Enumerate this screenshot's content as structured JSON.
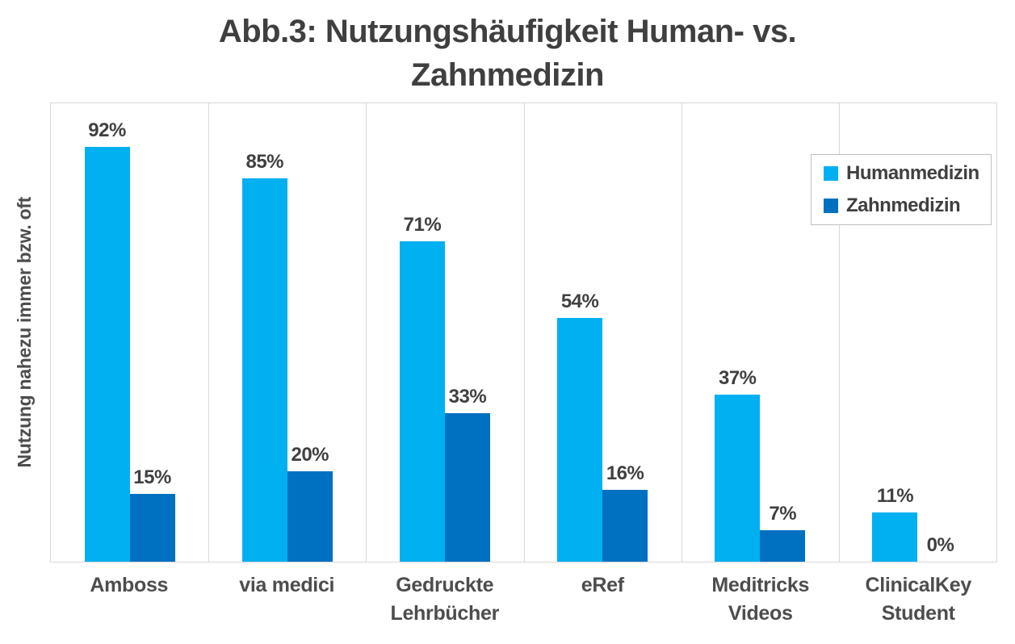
{
  "title": {
    "line1": "Abb.3: Nutzungshäufigkeit Human- vs.",
    "line2": "Zahnmedizin"
  },
  "chart_data": {
    "type": "bar",
    "title": "Abb.3: Nutzungshäufigkeit Human- vs. Zahnmedizin",
    "ylabel": "Nutzung nahezu immer bzw. oft",
    "xlabel": "",
    "categories": [
      "Amboss",
      "via medici",
      "Gedruckte Lehrbücher",
      "eRef",
      "Meditricks Videos",
      "ClinicalKey Student"
    ],
    "series": [
      {
        "name": "Humanmedizin",
        "color": "#00B0F0",
        "values": [
          92,
          85,
          71,
          54,
          37,
          11
        ]
      },
      {
        "name": "Zahnmedizin",
        "color": "#0070C0",
        "values": [
          15,
          20,
          33,
          16,
          7,
          0
        ]
      }
    ],
    "value_suffix": "%",
    "ylim": [
      0,
      100
    ],
    "y_axis_ticks_visible": false,
    "grid": "vertical-category-separators",
    "legend_position": "inside-top-right",
    "colors": {
      "title_text": "#3F3F3F",
      "label_text": "#404040",
      "axis_text": "#4D4D4D",
      "gridline": "#D9D9D9",
      "plot_border": "#D9D9D9",
      "legend_border": "#BFBFBF"
    }
  }
}
